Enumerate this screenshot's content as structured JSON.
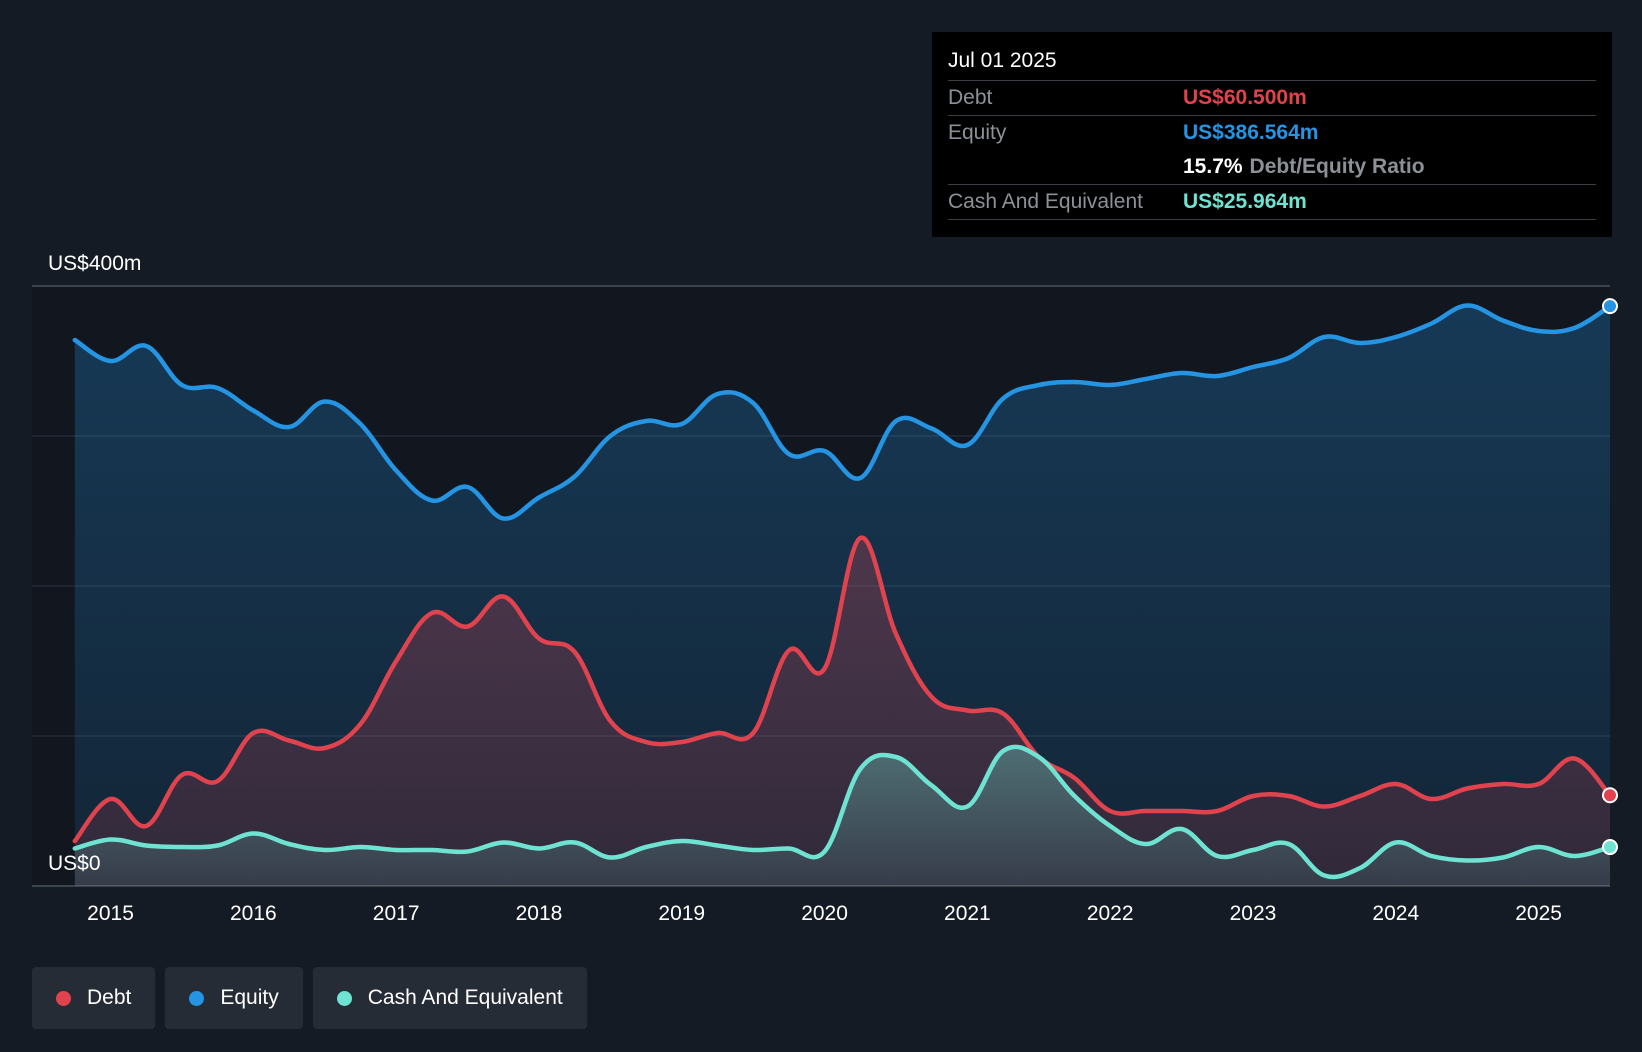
{
  "colors": {
    "background": "#151b24",
    "plot_background": "#11161f",
    "debt": "#e0424e",
    "equity": "#2494e3",
    "cash": "#6fe3d2",
    "grid": "#2c3440",
    "axis_text": "#ffffff"
  },
  "tooltip": {
    "date": "Jul 01 2025",
    "debt_label": "Debt",
    "debt_value": "US$60.500m",
    "equity_label": "Equity",
    "equity_value": "US$386.564m",
    "ratio_value": "15.7%",
    "ratio_label": "Debt/Equity Ratio",
    "cash_label": "Cash And Equivalent",
    "cash_value": "US$25.964m"
  },
  "legend": {
    "debt": "Debt",
    "equity": "Equity",
    "cash": "Cash And Equivalent"
  },
  "chart_data": {
    "type": "area",
    "title": "",
    "xlabel": "",
    "ylabel": "",
    "xlim": [
      2014.45,
      2025.5
    ],
    "ylim": [
      0,
      400
    ],
    "y_top_label": "US$400m",
    "y_bottom_label": "US$0",
    "x_ticks": [
      {
        "value": 2015,
        "label": "2015"
      },
      {
        "value": 2016,
        "label": "2016"
      },
      {
        "value": 2017,
        "label": "2017"
      },
      {
        "value": 2018,
        "label": "2018"
      },
      {
        "value": 2019,
        "label": "2019"
      },
      {
        "value": 2020,
        "label": "2020"
      },
      {
        "value": 2021,
        "label": "2021"
      },
      {
        "value": 2022,
        "label": "2022"
      },
      {
        "value": 2023,
        "label": "2023"
      },
      {
        "value": 2024,
        "label": "2024"
      },
      {
        "value": 2025,
        "label": "2025"
      }
    ],
    "gridlines_y": [
      0,
      100,
      200,
      300,
      400
    ],
    "series": [
      {
        "name": "Equity",
        "key": "equity",
        "points": [
          [
            2014.75,
            364
          ],
          [
            2015.0,
            350
          ],
          [
            2015.25,
            360
          ],
          [
            2015.5,
            334
          ],
          [
            2015.75,
            332
          ],
          [
            2016.0,
            317
          ],
          [
            2016.25,
            306
          ],
          [
            2016.5,
            323
          ],
          [
            2016.75,
            308
          ],
          [
            2017.0,
            277
          ],
          [
            2017.25,
            257
          ],
          [
            2017.5,
            266
          ],
          [
            2017.75,
            245
          ],
          [
            2018.0,
            259
          ],
          [
            2018.25,
            273
          ],
          [
            2018.5,
            300
          ],
          [
            2018.75,
            310
          ],
          [
            2019.0,
            308
          ],
          [
            2019.25,
            328
          ],
          [
            2019.5,
            322
          ],
          [
            2019.75,
            288
          ],
          [
            2020.0,
            290
          ],
          [
            2020.25,
            272
          ],
          [
            2020.5,
            310
          ],
          [
            2020.75,
            305
          ],
          [
            2021.0,
            294
          ],
          [
            2021.25,
            325
          ],
          [
            2021.5,
            334
          ],
          [
            2021.75,
            336
          ],
          [
            2022.0,
            334
          ],
          [
            2022.25,
            338
          ],
          [
            2022.5,
            342
          ],
          [
            2022.75,
            340
          ],
          [
            2023.0,
            346
          ],
          [
            2023.25,
            352
          ],
          [
            2023.5,
            366
          ],
          [
            2023.75,
            362
          ],
          [
            2024.0,
            366
          ],
          [
            2024.25,
            375
          ],
          [
            2024.5,
            387
          ],
          [
            2024.75,
            377
          ],
          [
            2025.0,
            370
          ],
          [
            2025.25,
            372
          ],
          [
            2025.5,
            386.564
          ]
        ]
      },
      {
        "name": "Debt",
        "key": "debt",
        "points": [
          [
            2014.75,
            30
          ],
          [
            2015.0,
            58
          ],
          [
            2015.25,
            40
          ],
          [
            2015.5,
            74
          ],
          [
            2015.75,
            70
          ],
          [
            2016.0,
            102
          ],
          [
            2016.25,
            97
          ],
          [
            2016.5,
            92
          ],
          [
            2016.75,
            108
          ],
          [
            2017.0,
            150
          ],
          [
            2017.25,
            182
          ],
          [
            2017.5,
            173
          ],
          [
            2017.75,
            193
          ],
          [
            2018.0,
            165
          ],
          [
            2018.25,
            156
          ],
          [
            2018.5,
            110
          ],
          [
            2018.75,
            96
          ],
          [
            2019.0,
            96
          ],
          [
            2019.25,
            102
          ],
          [
            2019.5,
            102
          ],
          [
            2019.75,
            157
          ],
          [
            2020.0,
            145
          ],
          [
            2020.25,
            232
          ],
          [
            2020.5,
            168
          ],
          [
            2020.75,
            126
          ],
          [
            2021.0,
            117
          ],
          [
            2021.25,
            115
          ],
          [
            2021.5,
            86
          ],
          [
            2021.75,
            72
          ],
          [
            2022.0,
            50
          ],
          [
            2022.25,
            50
          ],
          [
            2022.5,
            50
          ],
          [
            2022.75,
            50
          ],
          [
            2023.0,
            60
          ],
          [
            2023.25,
            60
          ],
          [
            2023.5,
            53
          ],
          [
            2023.75,
            60
          ],
          [
            2024.0,
            68
          ],
          [
            2024.25,
            58
          ],
          [
            2024.5,
            65
          ],
          [
            2024.75,
            68
          ],
          [
            2025.0,
            68
          ],
          [
            2025.25,
            85
          ],
          [
            2025.5,
            60.5
          ]
        ]
      },
      {
        "name": "Cash And Equivalent",
        "key": "cash",
        "points": [
          [
            2014.75,
            25
          ],
          [
            2015.0,
            31
          ],
          [
            2015.25,
            27
          ],
          [
            2015.5,
            26
          ],
          [
            2015.75,
            27
          ],
          [
            2016.0,
            35
          ],
          [
            2016.25,
            28
          ],
          [
            2016.5,
            24
          ],
          [
            2016.75,
            26
          ],
          [
            2017.0,
            24
          ],
          [
            2017.25,
            24
          ],
          [
            2017.5,
            23
          ],
          [
            2017.75,
            29
          ],
          [
            2018.0,
            25
          ],
          [
            2018.25,
            29
          ],
          [
            2018.5,
            19
          ],
          [
            2018.75,
            26
          ],
          [
            2019.0,
            30
          ],
          [
            2019.25,
            27
          ],
          [
            2019.5,
            24
          ],
          [
            2019.75,
            25
          ],
          [
            2020.0,
            23
          ],
          [
            2020.25,
            78
          ],
          [
            2020.5,
            86
          ],
          [
            2020.75,
            67
          ],
          [
            2021.0,
            53
          ],
          [
            2021.25,
            90
          ],
          [
            2021.5,
            86
          ],
          [
            2021.75,
            60
          ],
          [
            2022.0,
            40
          ],
          [
            2022.25,
            28
          ],
          [
            2022.5,
            38
          ],
          [
            2022.75,
            20
          ],
          [
            2023.0,
            24
          ],
          [
            2023.25,
            28
          ],
          [
            2023.5,
            7
          ],
          [
            2023.75,
            12
          ],
          [
            2024.0,
            29
          ],
          [
            2024.25,
            20
          ],
          [
            2024.5,
            17
          ],
          [
            2024.75,
            19
          ],
          [
            2025.0,
            26
          ],
          [
            2025.25,
            20
          ],
          [
            2025.5,
            25.964
          ]
        ]
      }
    ]
  }
}
